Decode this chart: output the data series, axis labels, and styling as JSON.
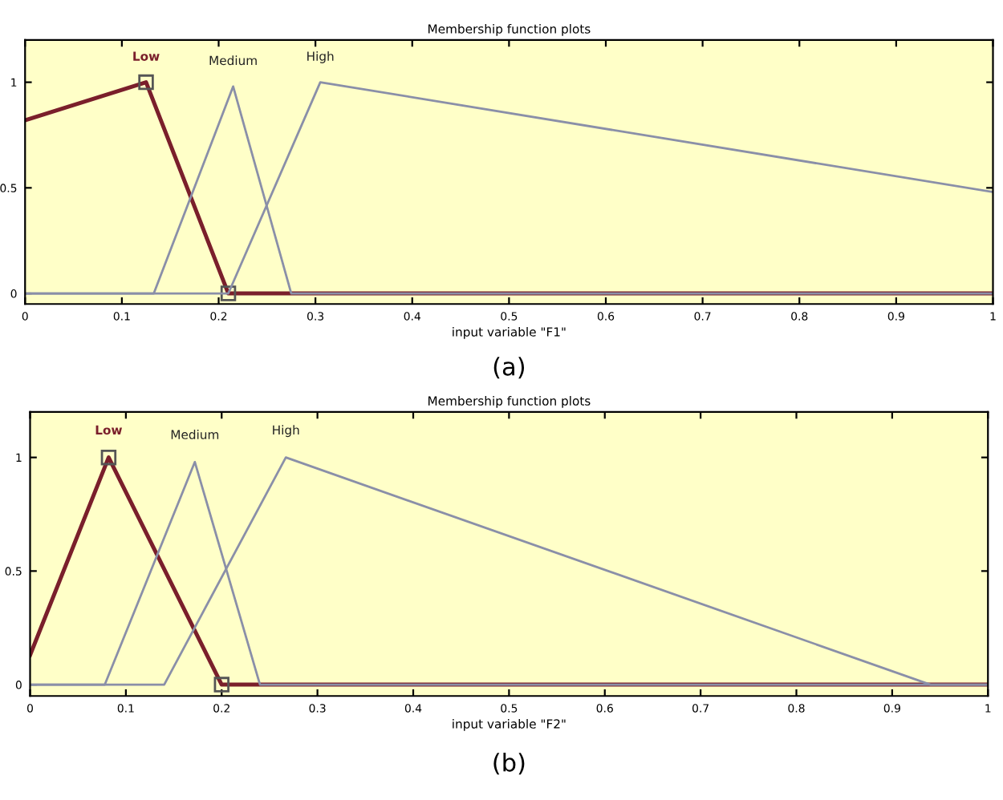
{
  "chart_data": [
    {
      "type": "line",
      "title": "Membership function plots",
      "xlabel": "input variable \"F1\"",
      "annotations": [
        "(a)"
      ],
      "xlim": [
        0,
        1
      ],
      "ylim": [
        -0.05,
        1.2
      ],
      "xticks": [
        0,
        0.1,
        0.2,
        0.3,
        0.4,
        0.5,
        0.6,
        0.7,
        0.8,
        0.9,
        1
      ],
      "yticks": [
        0,
        0.5,
        1
      ],
      "grid": false,
      "legend": false,
      "line_style": "solid",
      "series": [
        {
          "name": "Low",
          "color": "#7a1f2b",
          "marker": "square",
          "x": [
            0,
            0.125,
            0.21,
            1
          ],
          "values": [
            0.82,
            1,
            0,
            0
          ]
        },
        {
          "name": "Medium",
          "color": "#8a8fa8",
          "x": [
            0,
            0.133,
            0.215,
            0.275,
            1
          ],
          "values": [
            0,
            0,
            0.98,
            0,
            0
          ]
        },
        {
          "name": "High",
          "color": "#8a8fa8",
          "x": [
            0,
            0.21,
            0.305,
            1
          ],
          "values": [
            0,
            0,
            1,
            0.48
          ]
        }
      ]
    },
    {
      "type": "line",
      "title": "Membership function plots",
      "xlabel": "input variable \"F2\"",
      "annotations": [
        "(b)"
      ],
      "xlim": [
        0,
        1
      ],
      "ylim": [
        -0.05,
        1.2
      ],
      "xticks": [
        0,
        0.1,
        0.2,
        0.3,
        0.4,
        0.5,
        0.6,
        0.7,
        0.8,
        0.9,
        1
      ],
      "yticks": [
        0,
        0.5,
        1
      ],
      "grid": false,
      "legend": false,
      "line_style": "solid",
      "series": [
        {
          "name": "Low",
          "color": "#7a1f2b",
          "marker": "square",
          "x": [
            0,
            0.082,
            0.2,
            1
          ],
          "values": [
            0.13,
            1,
            0,
            0
          ]
        },
        {
          "name": "Medium",
          "color": "#8a8fa8",
          "x": [
            0,
            0.078,
            0.172,
            0.24,
            1
          ],
          "values": [
            0,
            0,
            0.98,
            0,
            0
          ]
        },
        {
          "name": "High",
          "color": "#8a8fa8",
          "x": [
            0,
            0.14,
            0.267,
            0.94,
            1
          ],
          "values": [
            0,
            0,
            1,
            0,
            0
          ]
        }
      ]
    }
  ]
}
